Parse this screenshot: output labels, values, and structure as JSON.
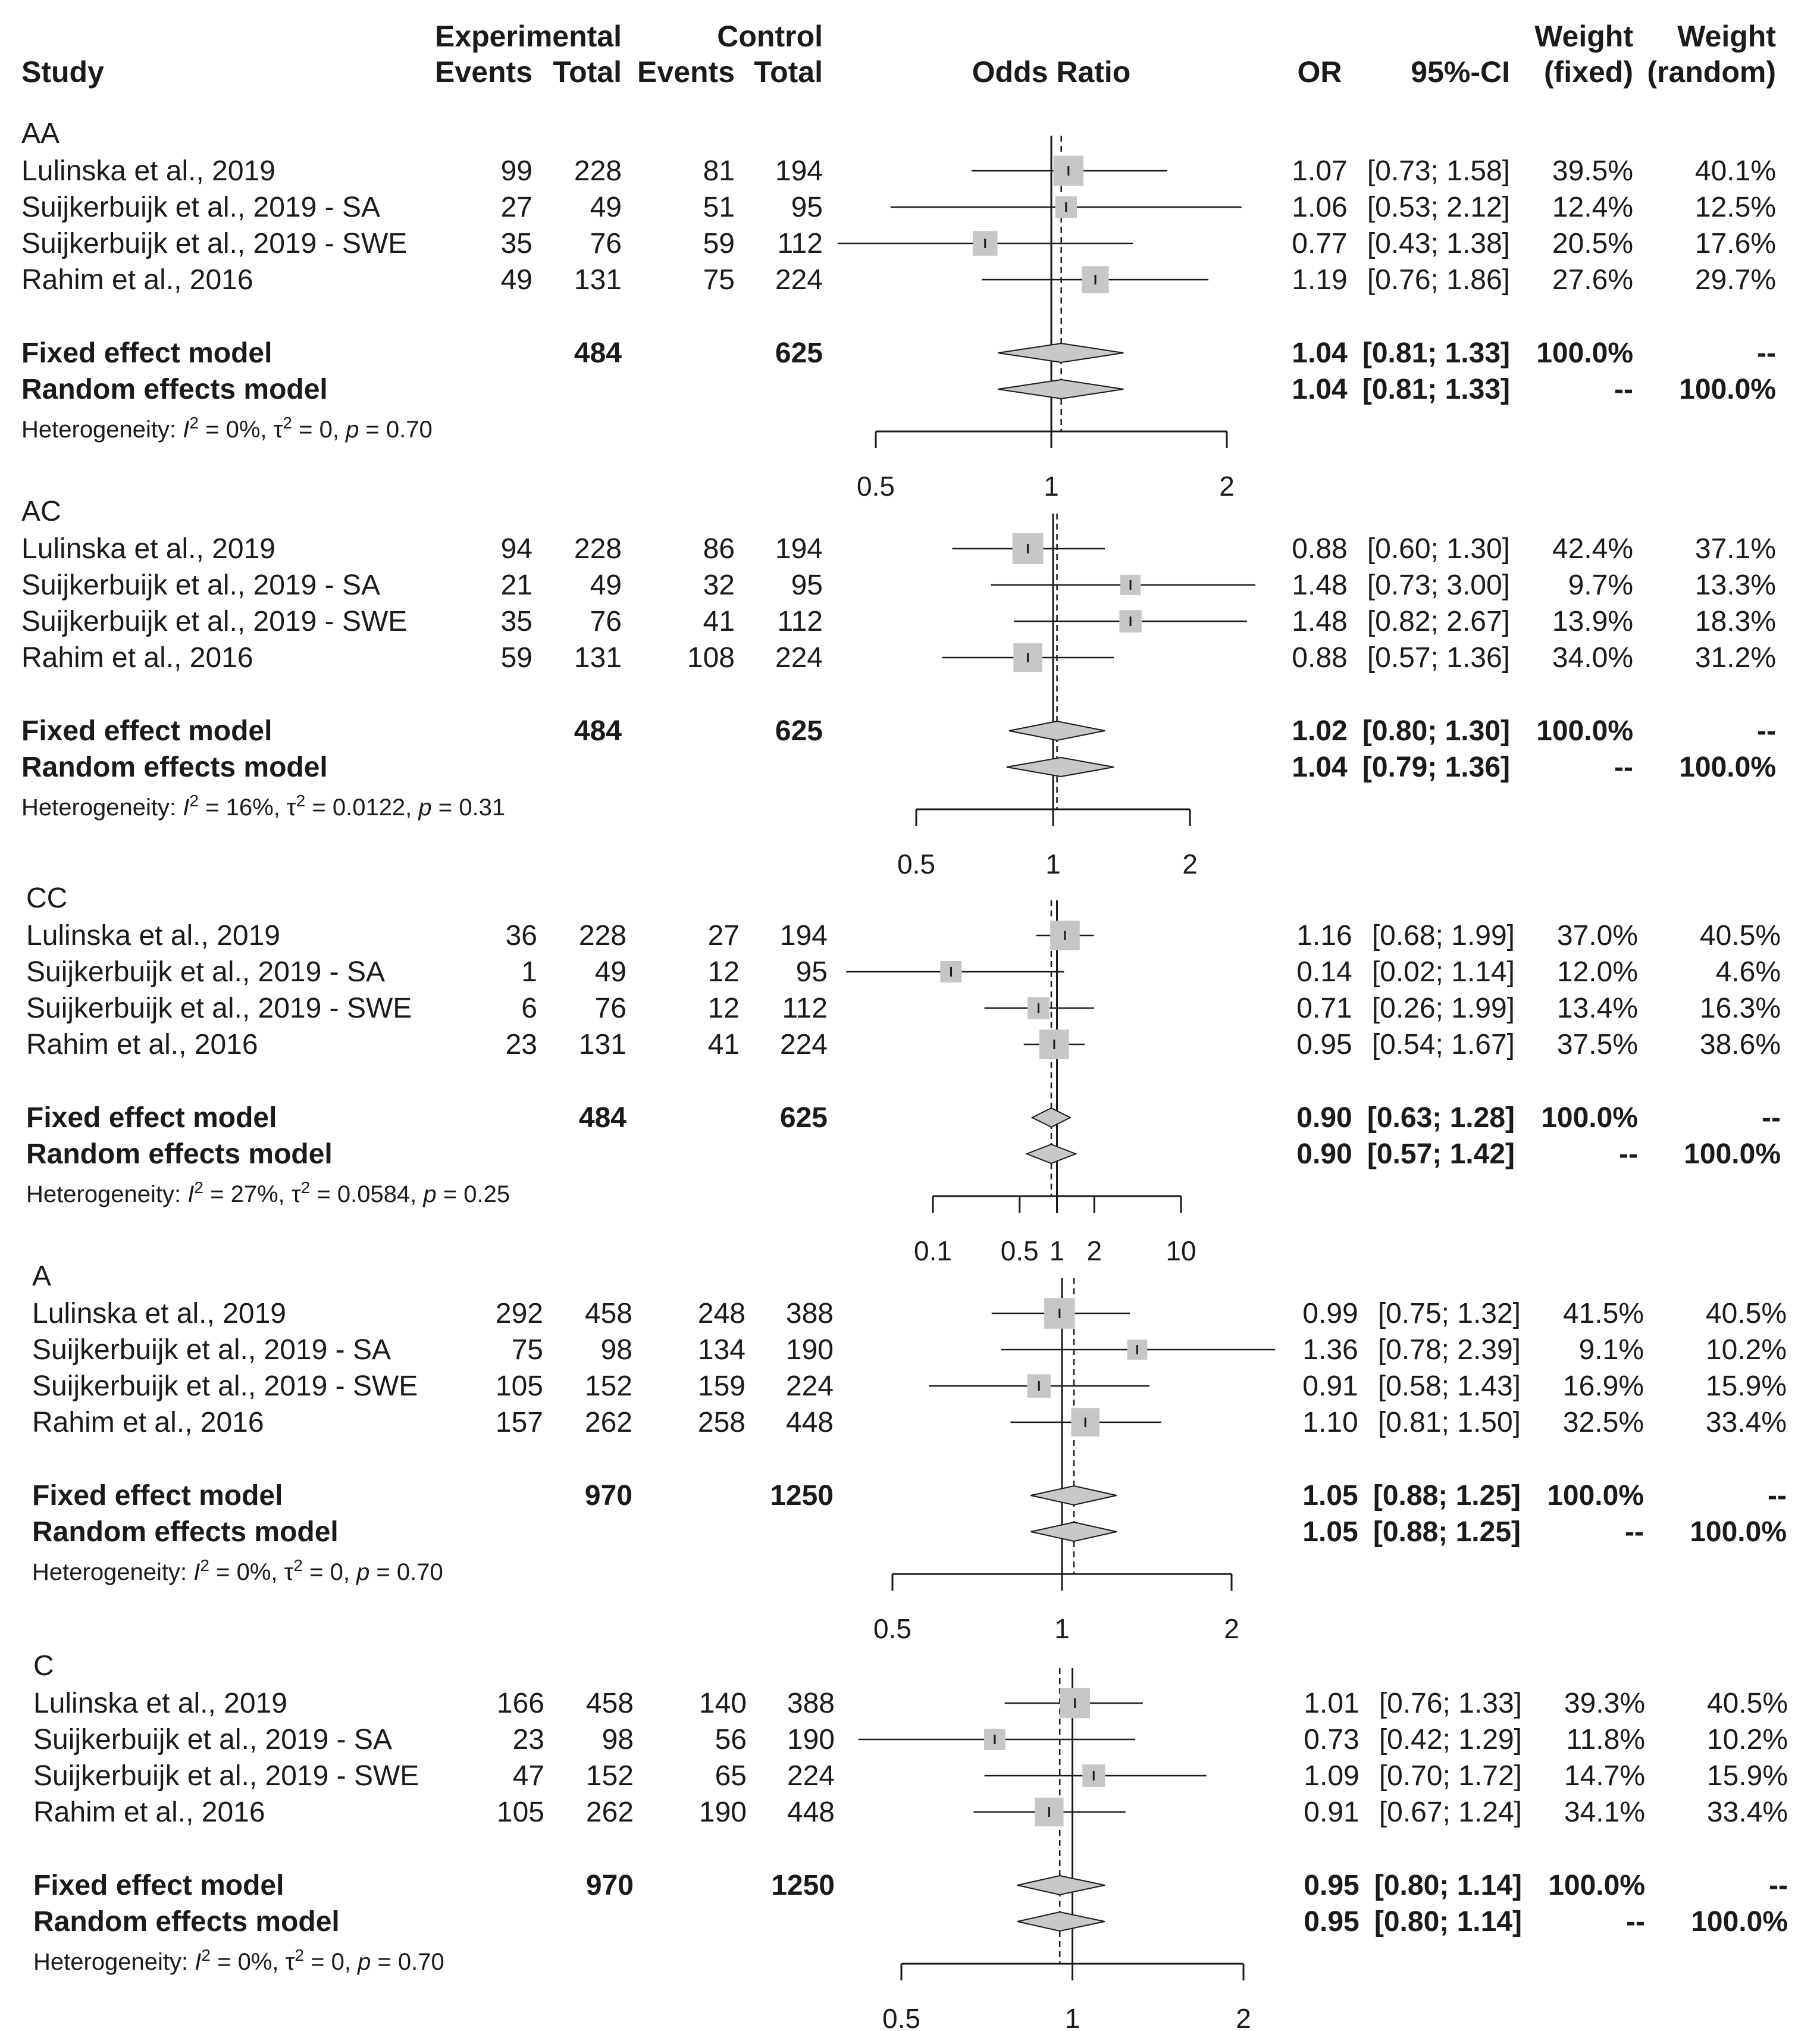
{
  "chart_data": {
    "type": "forest",
    "header": {
      "study": "Study",
      "experimental": "Experimental",
      "control": "Control",
      "events": "Events",
      "total": "Total",
      "odds_ratio": "Odds Ratio",
      "or": "OR",
      "ci": "95%-CI",
      "weight": "Weight",
      "fixed": "(fixed)",
      "random": "(random)"
    },
    "panels": [
      {
        "name": "AA",
        "axis": {
          "log_min": 0.5,
          "log_max": 2,
          "ticks": [
            {
              "value": 0.5,
              "label": "0.5"
            },
            {
              "value": 1,
              "label": "1"
            },
            {
              "value": 2,
              "label": "2"
            }
          ]
        },
        "studies": [
          {
            "study": "Lulinska et al., 2019",
            "e_events": "99",
            "e_total": "228",
            "c_events": "81",
            "c_total": "194",
            "or": 1.07,
            "lo": 0.73,
            "hi": 1.58,
            "or_text": "1.07",
            "ci_text": "[0.73; 1.58]",
            "w_fixed": "39.5%",
            "w_random": "40.1%"
          },
          {
            "study": "Suijkerbuijk et al., 2019 - SA",
            "e_events": "27",
            "e_total": "49",
            "c_events": "51",
            "c_total": "95",
            "or": 1.06,
            "lo": 0.53,
            "hi": 2.12,
            "or_text": "1.06",
            "ci_text": "[0.53; 2.12]",
            "w_fixed": "12.4%",
            "w_random": "12.5%"
          },
          {
            "study": "Suijkerbuijk et al., 2019 - SWE",
            "e_events": "35",
            "e_total": "76",
            "c_events": "59",
            "c_total": "112",
            "or": 0.77,
            "lo": 0.43,
            "hi": 1.38,
            "or_text": "0.77",
            "ci_text": "[0.43; 1.38]",
            "w_fixed": "20.5%",
            "w_random": "17.6%"
          },
          {
            "study": "Rahim et al., 2016",
            "e_events": "49",
            "e_total": "131",
            "c_events": "75",
            "c_total": "224",
            "or": 1.19,
            "lo": 0.76,
            "hi": 1.86,
            "or_text": "1.19",
            "ci_text": "[0.76; 1.86]",
            "w_fixed": "27.6%",
            "w_random": "29.7%"
          }
        ],
        "fixed": {
          "label": "Fixed effect model",
          "e_total": "484",
          "c_total": "625",
          "or": 1.04,
          "lo": 0.81,
          "hi": 1.33,
          "or_text": "1.04",
          "ci_text": "[0.81; 1.33]",
          "w_fixed": "100.0%",
          "w_random": "--"
        },
        "random": {
          "label": "Random effects model",
          "or": 1.04,
          "lo": 0.81,
          "hi": 1.33,
          "or_text": "1.04",
          "ci_text": "[0.81; 1.33]",
          "w_fixed": "--",
          "w_random": "100.0%"
        },
        "heterogeneity": {
          "prefix": "Heterogeneity: ",
          "i2": "I",
          "i2_value": " = 0%, ",
          "tau2": "τ",
          "tau2_value": " = 0, ",
          "p": "p",
          "p_value": " = 0.70",
          "sup": "2"
        }
      },
      {
        "name": "AC",
        "axis": {
          "log_min": 0.5,
          "log_max": 2,
          "ticks": [
            {
              "value": 0.5,
              "label": "0.5"
            },
            {
              "value": 1,
              "label": "1"
            },
            {
              "value": 2,
              "label": "2"
            }
          ]
        },
        "studies": [
          {
            "study": "Lulinska et al., 2019",
            "e_events": "94",
            "e_total": "228",
            "c_events": "86",
            "c_total": "194",
            "or": 0.88,
            "lo": 0.6,
            "hi": 1.3,
            "or_text": "0.88",
            "ci_text": "[0.60; 1.30]",
            "w_fixed": "42.4%",
            "w_random": "37.1%"
          },
          {
            "study": "Suijkerbuijk et al., 2019 - SA",
            "e_events": "21",
            "e_total": "49",
            "c_events": "32",
            "c_total": "95",
            "or": 1.48,
            "lo": 0.73,
            "hi": 3.0,
            "or_text": "1.48",
            "ci_text": "[0.73; 3.00]",
            "w_fixed": "9.7%",
            "w_random": "13.3%"
          },
          {
            "study": "Suijkerbuijk et al., 2019 - SWE",
            "e_events": "35",
            "e_total": "76",
            "c_events": "41",
            "c_total": "112",
            "or": 1.48,
            "lo": 0.82,
            "hi": 2.67,
            "or_text": "1.48",
            "ci_text": "[0.82; 2.67]",
            "w_fixed": "13.9%",
            "w_random": "18.3%"
          },
          {
            "study": "Rahim et al., 2016",
            "e_events": "59",
            "e_total": "131",
            "c_events": "108",
            "c_total": "224",
            "or": 0.88,
            "lo": 0.57,
            "hi": 1.36,
            "or_text": "0.88",
            "ci_text": "[0.57; 1.36]",
            "w_fixed": "34.0%",
            "w_random": "31.2%"
          }
        ],
        "fixed": {
          "label": "Fixed effect model",
          "e_total": "484",
          "c_total": "625",
          "or": 1.02,
          "lo": 0.8,
          "hi": 1.3,
          "or_text": "1.02",
          "ci_text": "[0.80; 1.30]",
          "w_fixed": "100.0%",
          "w_random": "--"
        },
        "random": {
          "label": "Random effects model",
          "or": 1.04,
          "lo": 0.79,
          "hi": 1.36,
          "or_text": "1.04",
          "ci_text": "[0.79; 1.36]",
          "w_fixed": "--",
          "w_random": "100.0%"
        },
        "heterogeneity": {
          "prefix": "Heterogeneity: ",
          "i2": "I",
          "i2_value": " = 16%, ",
          "tau2": "τ",
          "tau2_value": " = 0.0122, ",
          "p": "p",
          "p_value": " = 0.31",
          "sup": "2"
        }
      },
      {
        "name": "CC",
        "axis": {
          "log_min": 0.1,
          "log_max": 10,
          "ticks": [
            {
              "value": 0.1,
              "label": "0.1"
            },
            {
              "value": 0.5,
              "label": "0.5"
            },
            {
              "value": 1,
              "label": "1"
            },
            {
              "value": 2,
              "label": "2"
            },
            {
              "value": 10,
              "label": "10"
            }
          ]
        },
        "studies": [
          {
            "study": "Lulinska et al., 2019",
            "e_events": "36",
            "e_total": "228",
            "c_events": "27",
            "c_total": "194",
            "or": 1.16,
            "lo": 0.68,
            "hi": 1.99,
            "or_text": "1.16",
            "ci_text": "[0.68; 1.99]",
            "w_fixed": "37.0%",
            "w_random": "40.5%"
          },
          {
            "study": "Suijkerbuijk et al., 2019 - SA",
            "e_events": "1",
            "e_total": "49",
            "c_events": "12",
            "c_total": "95",
            "or": 0.14,
            "lo": 0.02,
            "hi": 1.14,
            "or_text": "0.14",
            "ci_text": "[0.02; 1.14]",
            "w_fixed": "12.0%",
            "w_random": "4.6%"
          },
          {
            "study": "Suijkerbuijk et al., 2019 - SWE",
            "e_events": "6",
            "e_total": "76",
            "c_events": "12",
            "c_total": "112",
            "or": 0.71,
            "lo": 0.26,
            "hi": 1.99,
            "or_text": "0.71",
            "ci_text": "[0.26; 1.99]",
            "w_fixed": "13.4%",
            "w_random": "16.3%"
          },
          {
            "study": "Rahim et al., 2016",
            "e_events": "23",
            "e_total": "131",
            "c_events": "41",
            "c_total": "224",
            "or": 0.95,
            "lo": 0.54,
            "hi": 1.67,
            "or_text": "0.95",
            "ci_text": "[0.54; 1.67]",
            "w_fixed": "37.5%",
            "w_random": "38.6%"
          }
        ],
        "fixed": {
          "label": "Fixed effect model",
          "e_total": "484",
          "c_total": "625",
          "or": 0.9,
          "lo": 0.63,
          "hi": 1.28,
          "or_text": "0.90",
          "ci_text": "[0.63; 1.28]",
          "w_fixed": "100.0%",
          "w_random": "--"
        },
        "random": {
          "label": "Random effects model",
          "or": 0.9,
          "lo": 0.57,
          "hi": 1.42,
          "or_text": "0.90",
          "ci_text": "[0.57; 1.42]",
          "w_fixed": "--",
          "w_random": "100.0%"
        },
        "heterogeneity": {
          "prefix": "Heterogeneity: ",
          "i2": "I",
          "i2_value": " = 27%, ",
          "tau2": "τ",
          "tau2_value": " = 0.0584, ",
          "p": "p",
          "p_value": " = 0.25",
          "sup": "2"
        }
      },
      {
        "name": "A",
        "axis": {
          "log_min": 0.5,
          "log_max": 2,
          "ticks": [
            {
              "value": 0.5,
              "label": "0.5"
            },
            {
              "value": 1,
              "label": "1"
            },
            {
              "value": 2,
              "label": "2"
            }
          ]
        },
        "studies": [
          {
            "study": "Lulinska et al., 2019",
            "e_events": "292",
            "e_total": "458",
            "c_events": "248",
            "c_total": "388",
            "or": 0.99,
            "lo": 0.75,
            "hi": 1.32,
            "or_text": "0.99",
            "ci_text": "[0.75; 1.32]",
            "w_fixed": "41.5%",
            "w_random": "40.5%"
          },
          {
            "study": "Suijkerbuijk et al., 2019 - SA",
            "e_events": "75",
            "e_total": "98",
            "c_events": "134",
            "c_total": "190",
            "or": 1.36,
            "lo": 0.78,
            "hi": 2.39,
            "or_text": "1.36",
            "ci_text": "[0.78; 2.39]",
            "w_fixed": "9.1%",
            "w_random": "10.2%"
          },
          {
            "study": "Suijkerbuijk et al., 2019 - SWE",
            "e_events": "105",
            "e_total": "152",
            "c_events": "159",
            "c_total": "224",
            "or": 0.91,
            "lo": 0.58,
            "hi": 1.43,
            "or_text": "0.91",
            "ci_text": "[0.58; 1.43]",
            "w_fixed": "16.9%",
            "w_random": "15.9%"
          },
          {
            "study": "Rahim et al., 2016",
            "e_events": "157",
            "e_total": "262",
            "c_events": "258",
            "c_total": "448",
            "or": 1.1,
            "lo": 0.81,
            "hi": 1.5,
            "or_text": "1.10",
            "ci_text": "[0.81; 1.50]",
            "w_fixed": "32.5%",
            "w_random": "33.4%"
          }
        ],
        "fixed": {
          "label": "Fixed effect model",
          "e_total": "970",
          "c_total": "1250",
          "or": 1.05,
          "lo": 0.88,
          "hi": 1.25,
          "or_text": "1.05",
          "ci_text": "[0.88; 1.25]",
          "w_fixed": "100.0%",
          "w_random": "--"
        },
        "random": {
          "label": "Random effects model",
          "or": 1.05,
          "lo": 0.88,
          "hi": 1.25,
          "or_text": "1.05",
          "ci_text": "[0.88; 1.25]",
          "w_fixed": "--",
          "w_random": "100.0%"
        },
        "heterogeneity": {
          "prefix": "Heterogeneity: ",
          "i2": "I",
          "i2_value": " = 0%, ",
          "tau2": "τ",
          "tau2_value": " = 0, ",
          "p": "p",
          "p_value": " = 0.70",
          "sup": "2"
        }
      },
      {
        "name": "C",
        "axis": {
          "log_min": 0.5,
          "log_max": 2,
          "ticks": [
            {
              "value": 0.5,
              "label": "0.5"
            },
            {
              "value": 1,
              "label": "1"
            },
            {
              "value": 2,
              "label": "2"
            }
          ]
        },
        "studies": [
          {
            "study": "Lulinska et al., 2019",
            "e_events": "166",
            "e_total": "458",
            "c_events": "140",
            "c_total": "388",
            "or": 1.01,
            "lo": 0.76,
            "hi": 1.33,
            "or_text": "1.01",
            "ci_text": "[0.76; 1.33]",
            "w_fixed": "39.3%",
            "w_random": "40.5%"
          },
          {
            "study": "Suijkerbuijk et al., 2019 - SA",
            "e_events": "23",
            "e_total": "98",
            "c_events": "56",
            "c_total": "190",
            "or": 0.73,
            "lo": 0.42,
            "hi": 1.29,
            "or_text": "0.73",
            "ci_text": "[0.42; 1.29]",
            "w_fixed": "11.8%",
            "w_random": "10.2%"
          },
          {
            "study": "Suijkerbuijk et al., 2019 - SWE",
            "e_events": "47",
            "e_total": "152",
            "c_events": "65",
            "c_total": "224",
            "or": 1.09,
            "lo": 0.7,
            "hi": 1.72,
            "or_text": "1.09",
            "ci_text": "[0.70; 1.72]",
            "w_fixed": "14.7%",
            "w_random": "15.9%"
          },
          {
            "study": "Rahim et al., 2016",
            "e_events": "105",
            "e_total": "262",
            "c_events": "190",
            "c_total": "448",
            "or": 0.91,
            "lo": 0.67,
            "hi": 1.24,
            "or_text": "0.91",
            "ci_text": "[0.67; 1.24]",
            "w_fixed": "34.1%",
            "w_random": "33.4%"
          }
        ],
        "fixed": {
          "label": "Fixed effect model",
          "e_total": "970",
          "c_total": "1250",
          "or": 0.95,
          "lo": 0.8,
          "hi": 1.14,
          "or_text": "0.95",
          "ci_text": "[0.80; 1.14]",
          "w_fixed": "100.0%",
          "w_random": "--"
        },
        "random": {
          "label": "Random effects model",
          "or": 0.95,
          "lo": 0.8,
          "hi": 1.14,
          "or_text": "0.95",
          "ci_text": "[0.80; 1.14]",
          "w_fixed": "--",
          "w_random": "100.0%"
        },
        "heterogeneity": {
          "prefix": "Heterogeneity: ",
          "i2": "I",
          "i2_value": " = 0%, ",
          "tau2": "τ",
          "tau2_value": " = 0, ",
          "p": "p",
          "p_value": " = 0.70",
          "sup": "2"
        }
      }
    ],
    "colors": {
      "square": "#c6c6c6",
      "diamond": "#c8c8c8",
      "line": "#1a1a1a",
      "text": "#1a1a1a"
    }
  }
}
